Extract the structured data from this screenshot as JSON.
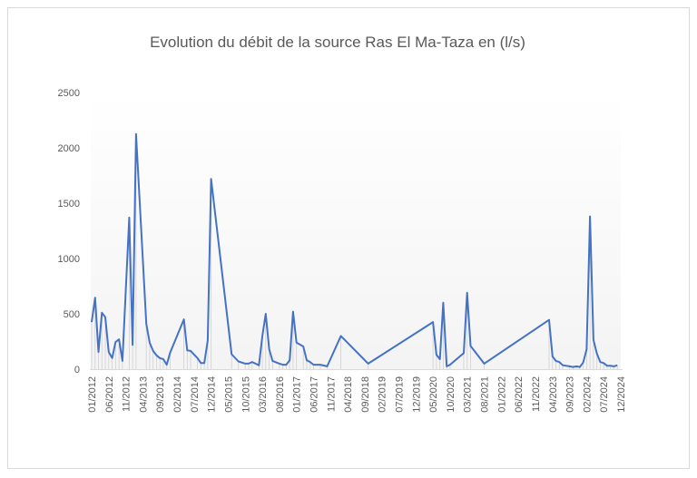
{
  "chart_data": {
    "type": "line",
    "title": "Evolution du débit de la source Ras El Ma-Taza en (l/s)",
    "color": "#4472c4",
    "x": [
      "01/2012",
      "02/2012",
      "03/2012",
      "04/2012",
      "05/2012",
      "06/2012",
      "07/2012",
      "08/2012",
      "09/2012",
      "10/2012",
      "12/2012",
      "01/2013",
      "02/2013",
      "05/2013",
      "06/2013",
      "07/2013",
      "08/2013",
      "09/2013",
      "10/2013",
      "11/2013",
      "12/2013",
      "04/2014",
      "05/2014",
      "06/2014",
      "08/2014",
      "09/2014",
      "10/2014",
      "11/2014",
      "12/2014",
      "06/2015",
      "08/2015",
      "10/2015",
      "11/2015",
      "12/2015",
      "02/2016",
      "03/2016",
      "04/2016",
      "05/2016",
      "06/2016",
      "08/2016",
      "09/2016",
      "10/2016",
      "11/2016",
      "12/2016",
      "01/2017",
      "03/2017",
      "04/2017",
      "05/2017",
      "06/2017",
      "08/2017",
      "10/2017",
      "02/2018",
      "10/2018",
      "05/2020",
      "06/2020",
      "07/2020",
      "08/2020",
      "09/2020",
      "10/2020",
      "02/2021",
      "03/2021",
      "04/2021",
      "08/2021",
      "03/2023",
      "04/2023",
      "05/2023",
      "06/2023",
      "07/2023",
      "09/2023",
      "10/2023",
      "11/2023",
      "12/2023",
      "01/2024",
      "02/2024",
      "03/2024",
      "04/2024",
      "05/2024",
      "06/2024",
      "07/2024",
      "08/2024",
      "09/2024",
      "10/2024",
      "11/2024"
    ],
    "values": [
      425,
      645,
      155,
      510,
      470,
      155,
      100,
      245,
      270,
      75,
      1370,
      220,
      2125,
      410,
      240,
      165,
      125,
      100,
      90,
      40,
      150,
      450,
      170,
      165,
      100,
      55,
      55,
      260,
      1720,
      135,
      70,
      50,
      50,
      65,
      35,
      300,
      500,
      180,
      75,
      50,
      40,
      40,
      80,
      520,
      240,
      205,
      80,
      65,
      40,
      40,
      25,
      300,
      50,
      425,
      130,
      90,
      600,
      25,
      40,
      145,
      690,
      210,
      50,
      445,
      115,
      75,
      65,
      35,
      25,
      20,
      25,
      20,
      60,
      180,
      1380,
      265,
      140,
      65,
      55,
      30,
      30,
      25,
      35
    ],
    "xlim": [
      "01/2012",
      "12/2024"
    ],
    "xticks": [
      "01/2012",
      "06/2012",
      "11/2012",
      "04/2013",
      "09/2013",
      "02/2014",
      "07/2014",
      "12/2014",
      "05/2015",
      "10/2015",
      "03/2016",
      "08/2016",
      "01/2017",
      "06/2017",
      "11/2017",
      "04/2018",
      "09/2018",
      "02/2019",
      "07/2019",
      "12/2019",
      "05/2020",
      "10/2020",
      "03/2021",
      "08/2021",
      "01/2022",
      "06/2022",
      "11/2022",
      "04/2023",
      "09/2023",
      "02/2024",
      "07/2024",
      "12/2024"
    ],
    "ylim": [
      0,
      2500
    ],
    "yticks": [
      0,
      500,
      1000,
      1500,
      2000,
      2500
    ],
    "grid": false
  }
}
